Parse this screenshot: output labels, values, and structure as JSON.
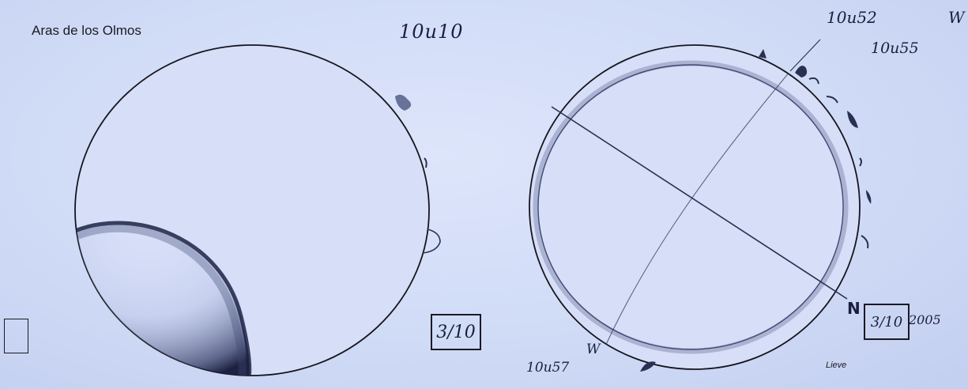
{
  "title": "Aras de los Olmos",
  "left_disk": {
    "time_label": "10u10",
    "date_box": "3/10"
  },
  "right_disk": {
    "time_top": "10u52",
    "time_right": "10u55",
    "time_bottom": "10u57",
    "direction_top": "W",
    "direction_bottom": "W",
    "direction_north": "N",
    "date_box": "3/10",
    "year": "2005",
    "signature": "Lieve"
  },
  "colors": {
    "paper": "#d2dcf6",
    "ink": "#1a1a22",
    "pencil": "#3b4466",
    "handwriting": "#1a1f3e"
  }
}
